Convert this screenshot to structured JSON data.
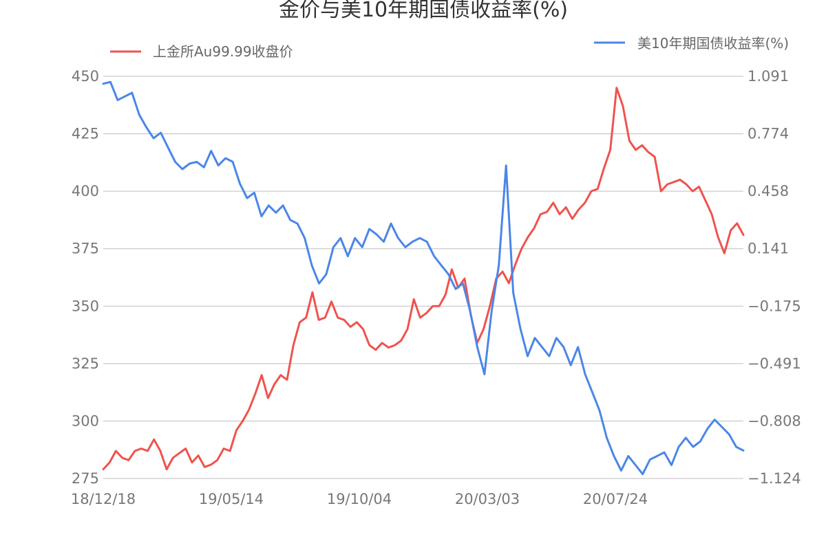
{
  "chart_data": {
    "type": "line",
    "title": "金价与美10年期国债收益率(%)",
    "x_tick_labels": [
      "18/12/18",
      "19/05/14",
      "19/10/04",
      "20/03/03",
      "20/07/24"
    ],
    "left_axis": {
      "ticks": [
        275,
        300,
        325,
        350,
        375,
        400,
        425,
        450
      ],
      "ylim": [
        275,
        450
      ]
    },
    "right_axis": {
      "tick_labels": [
        "-1.124",
        "-0.808",
        "-0.491",
        "-0.175",
        "0.141",
        "0.458",
        "0.774",
        "1.091"
      ],
      "ylim": [
        -1.124,
        1.091
      ]
    },
    "grid": true,
    "legend_position": "top",
    "series": [
      {
        "name": "上金所Au99.99收盘价",
        "axis": "left",
        "color": "#f0524d",
        "values": [
          279,
          282,
          287,
          284,
          283,
          287,
          288,
          287,
          292,
          287,
          279,
          284,
          286,
          288,
          282,
          285,
          280,
          281,
          283,
          288,
          287,
          296,
          300,
          305,
          312,
          320,
          310,
          316,
          320,
          318,
          333,
          343,
          345,
          356,
          344,
          345,
          352,
          345,
          344,
          341,
          343,
          340,
          333,
          331,
          334,
          332,
          333,
          335,
          340,
          353,
          345,
          347,
          350,
          350,
          355,
          366,
          358,
          362,
          346,
          334,
          340,
          350,
          362,
          365,
          360,
          368,
          375,
          380,
          384,
          390,
          391,
          395,
          390,
          393,
          388,
          392,
          395,
          400,
          401,
          410,
          418,
          445,
          437,
          422,
          418,
          420,
          417,
          415,
          400,
          403,
          404,
          405,
          403,
          400,
          402,
          396,
          390,
          380,
          373,
          383,
          386,
          381
        ]
      },
      {
        "name": "美10年期国债收益率(%)",
        "axis": "right",
        "color": "#4a86e8",
        "values": [
          1.05,
          1.06,
          0.96,
          0.98,
          1.0,
          0.88,
          0.81,
          0.75,
          0.78,
          0.7,
          0.62,
          0.58,
          0.61,
          0.62,
          0.59,
          0.68,
          0.6,
          0.64,
          0.62,
          0.5,
          0.42,
          0.45,
          0.32,
          0.38,
          0.34,
          0.38,
          0.3,
          0.28,
          0.2,
          0.05,
          -0.05,
          0.0,
          0.15,
          0.2,
          0.1,
          0.2,
          0.15,
          0.25,
          0.22,
          0.18,
          0.28,
          0.2,
          0.15,
          0.18,
          0.2,
          0.18,
          0.1,
          0.05,
          0.0,
          -0.08,
          -0.05,
          -0.2,
          -0.4,
          -0.55,
          -0.2,
          0.05,
          0.6,
          -0.1,
          -0.3,
          -0.45,
          -0.35,
          -0.4,
          -0.45,
          -0.35,
          -0.4,
          -0.5,
          -0.4,
          -0.55,
          -0.65,
          -0.75,
          -0.9,
          -1.0,
          -1.08,
          -1.0,
          -1.05,
          -1.1,
          -1.02,
          -1.0,
          -0.98,
          -1.05,
          -0.95,
          -0.9,
          -0.95,
          -0.92,
          -0.85,
          -0.8,
          -0.84,
          -0.88,
          -0.95,
          -0.97
        ]
      }
    ]
  }
}
